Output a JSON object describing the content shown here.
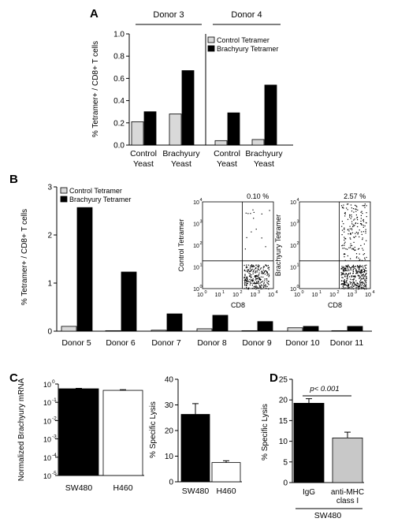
{
  "panel_letters": {
    "A": "A",
    "B": "B",
    "C": "C",
    "D": "D"
  },
  "colors": {
    "control": "#d9d9d9",
    "brachyury": "#000000",
    "open": "#ffffff",
    "grey": "#c8c8c8",
    "axis": "#000000"
  },
  "chart_data": [
    {
      "id": "A",
      "type": "bar",
      "ylabel": "% Tetramer+ / CD8+ T cells",
      "ylim": [
        0,
        1.0
      ],
      "yticks": [
        "0.0",
        "0.2",
        "0.4",
        "0.6",
        "0.8",
        "1.0"
      ],
      "groups": [
        {
          "donor": "Donor 3",
          "categories": [
            [
              "Control",
              "Yeast"
            ],
            [
              "Brachyury",
              "Yeast"
            ]
          ]
        },
        {
          "donor": "Donor 4",
          "categories": [
            [
              "Control",
              "Yeast"
            ],
            [
              "Brachyury",
              "Yeast"
            ]
          ]
        }
      ],
      "series": [
        {
          "name": "Control Tetramer",
          "values": [
            0.21,
            0.28,
            0.04,
            0.05
          ]
        },
        {
          "name": "Brachyury Tetramer",
          "values": [
            0.3,
            0.67,
            0.29,
            0.54
          ]
        }
      ],
      "legend": "top-right of Donor 4 plot"
    },
    {
      "id": "B",
      "type": "bar",
      "ylabel": "% Tetramer+ / CD8+ T cells",
      "ylim": [
        0,
        3
      ],
      "yticks": [
        "0",
        "1",
        "2",
        "3"
      ],
      "categories": [
        "Donor 5",
        "Donor 6",
        "Donor 7",
        "Donor 8",
        "Donor 9",
        "Donor 10",
        "Donor 11"
      ],
      "series": [
        {
          "name": "Control Tetramer",
          "values": [
            0.1,
            0.01,
            0.02,
            0.05,
            0.01,
            0.07,
            0.01
          ]
        },
        {
          "name": "Brachyury Tetramer",
          "values": [
            2.57,
            1.23,
            0.36,
            0.33,
            0.2,
            0.1,
            0.1
          ]
        }
      ],
      "legend": "top-left",
      "insets": [
        {
          "type": "scatter",
          "ylabel": "Control Tetramer",
          "xlabel": "CD8",
          "percent": "0.10 %"
        },
        {
          "type": "scatter",
          "ylabel": "Brachyury Tetramer",
          "xlabel": "CD8",
          "percent": "2.57 %"
        }
      ],
      "inset_ticks": [
        "10",
        "0",
        "10",
        "1",
        "10",
        "2",
        "10",
        "3",
        "10",
        "4"
      ],
      "inset_tick_labels": {
        "base": "10",
        "exponents": [
          "0",
          "1",
          "2",
          "3",
          "4"
        ]
      }
    },
    {
      "id": "C-left",
      "type": "bar",
      "scale": "log",
      "ylabel": "Normalized Brachyury mRNA",
      "ylim_exp": [
        -5,
        0
      ],
      "ytick_base": "10",
      "ytick_exponents": [
        "0",
        "-1",
        "-2",
        "-3",
        "-4",
        "-5"
      ],
      "categories": [
        "SW480",
        "H460"
      ],
      "values": [
        0.55,
        0.45
      ],
      "error": [
        0.03,
        0.04
      ]
    },
    {
      "id": "C-right",
      "type": "bar",
      "ylabel": "% Specific Lysis",
      "ylim": [
        0,
        40
      ],
      "yticks": [
        "0",
        "10",
        "20",
        "30",
        "40"
      ],
      "categories": [
        "SW480",
        "H460"
      ],
      "values": [
        26.3,
        7.5
      ],
      "error": [
        4.2,
        0.7
      ]
    },
    {
      "id": "D",
      "type": "bar",
      "ylabel": "% Specific Lysis",
      "ylim": [
        0,
        25
      ],
      "yticks": [
        "0",
        "5",
        "10",
        "15",
        "20",
        "25"
      ],
      "categories": [
        [
          "IgG"
        ],
        [
          "anti-MHC",
          "class I"
        ]
      ],
      "values": [
        19.2,
        10.8
      ],
      "error": [
        1.1,
        1.4
      ],
      "annotation": "p< 0.001",
      "group_label": "SW480"
    }
  ]
}
